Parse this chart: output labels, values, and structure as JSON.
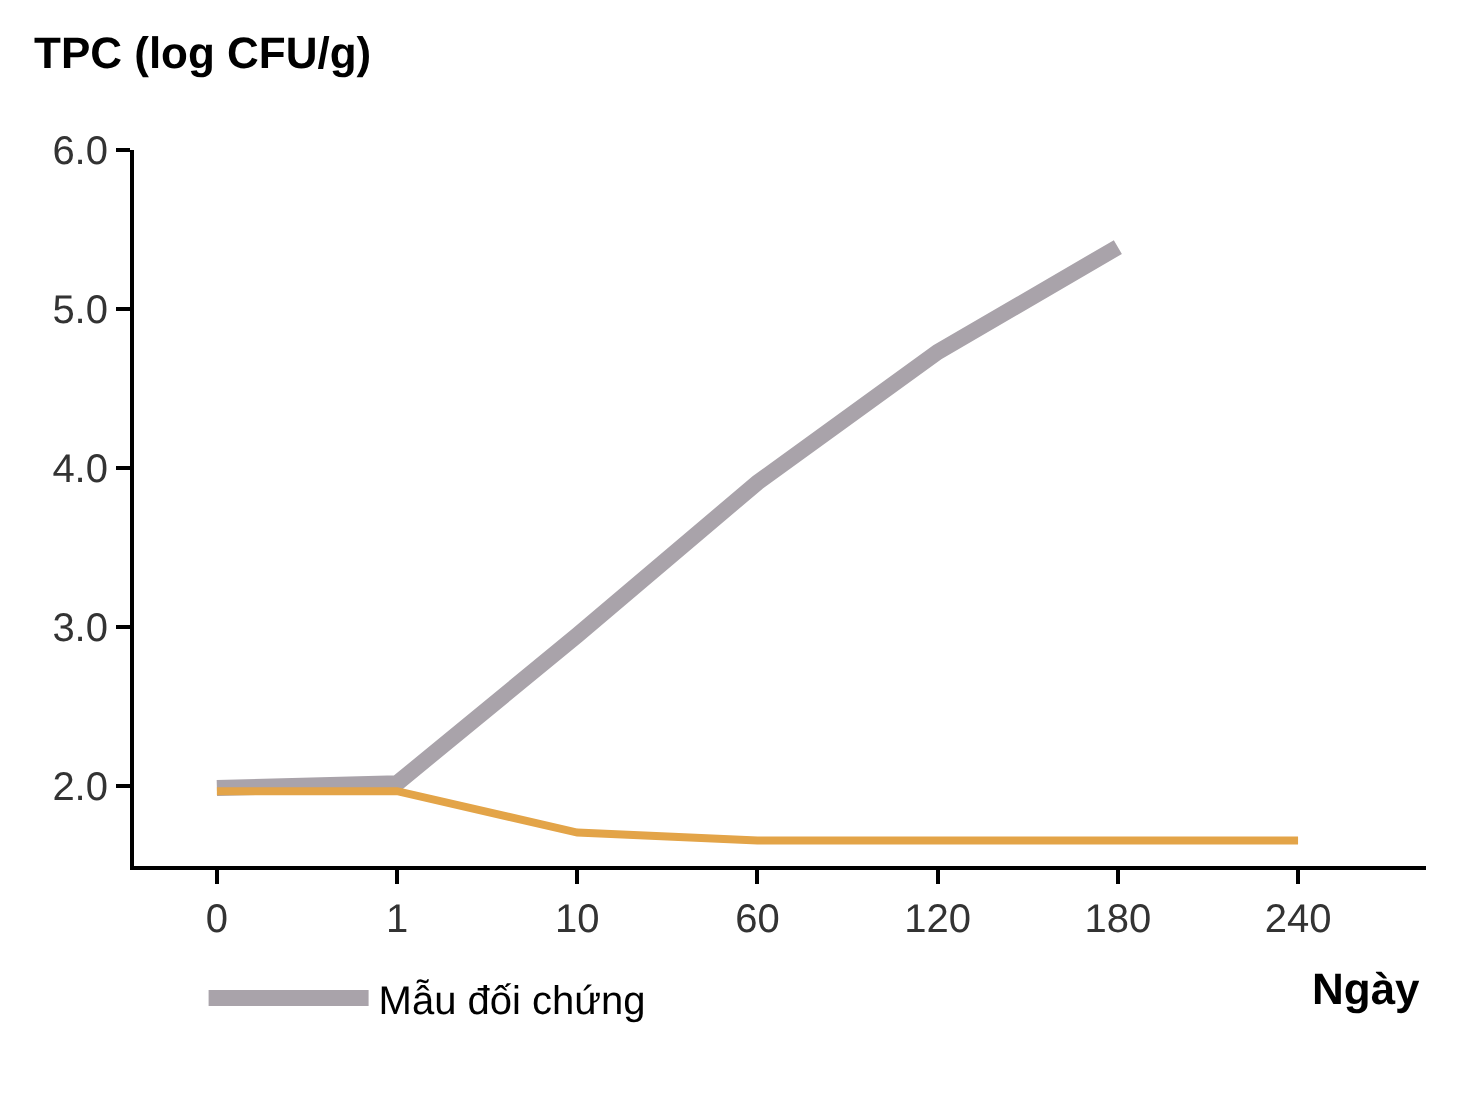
{
  "chart_data": {
    "type": "line",
    "xlabel": "Ngày",
    "ylabel": "TPC (log CFU/g)",
    "categories": [
      "0",
      "1",
      "10",
      "60",
      "120",
      "180",
      "240"
    ],
    "series": [
      {
        "name": "Mẫu đối chứng",
        "color": "#a9a3aa",
        "values": [
          1.99,
          2.02,
          2.95,
          3.91,
          4.73,
          5.39,
          null
        ]
      },
      {
        "color": "#e3a448",
        "values": [
          1.97,
          1.97,
          1.71,
          1.66,
          1.66,
          1.66,
          1.66
        ]
      }
    ],
    "ylim": [
      1.5,
      6.0
    ],
    "yticks": [
      {
        "value": 2,
        "label": "2.0"
      },
      {
        "value": 3,
        "label": "3.0"
      },
      {
        "value": 4,
        "label": "4.0"
      },
      {
        "value": 5,
        "label": "5.0"
      },
      {
        "value": 6,
        "label": "6.0"
      }
    ],
    "legend": "bottom",
    "marker": "none",
    "line_style": "solid"
  }
}
